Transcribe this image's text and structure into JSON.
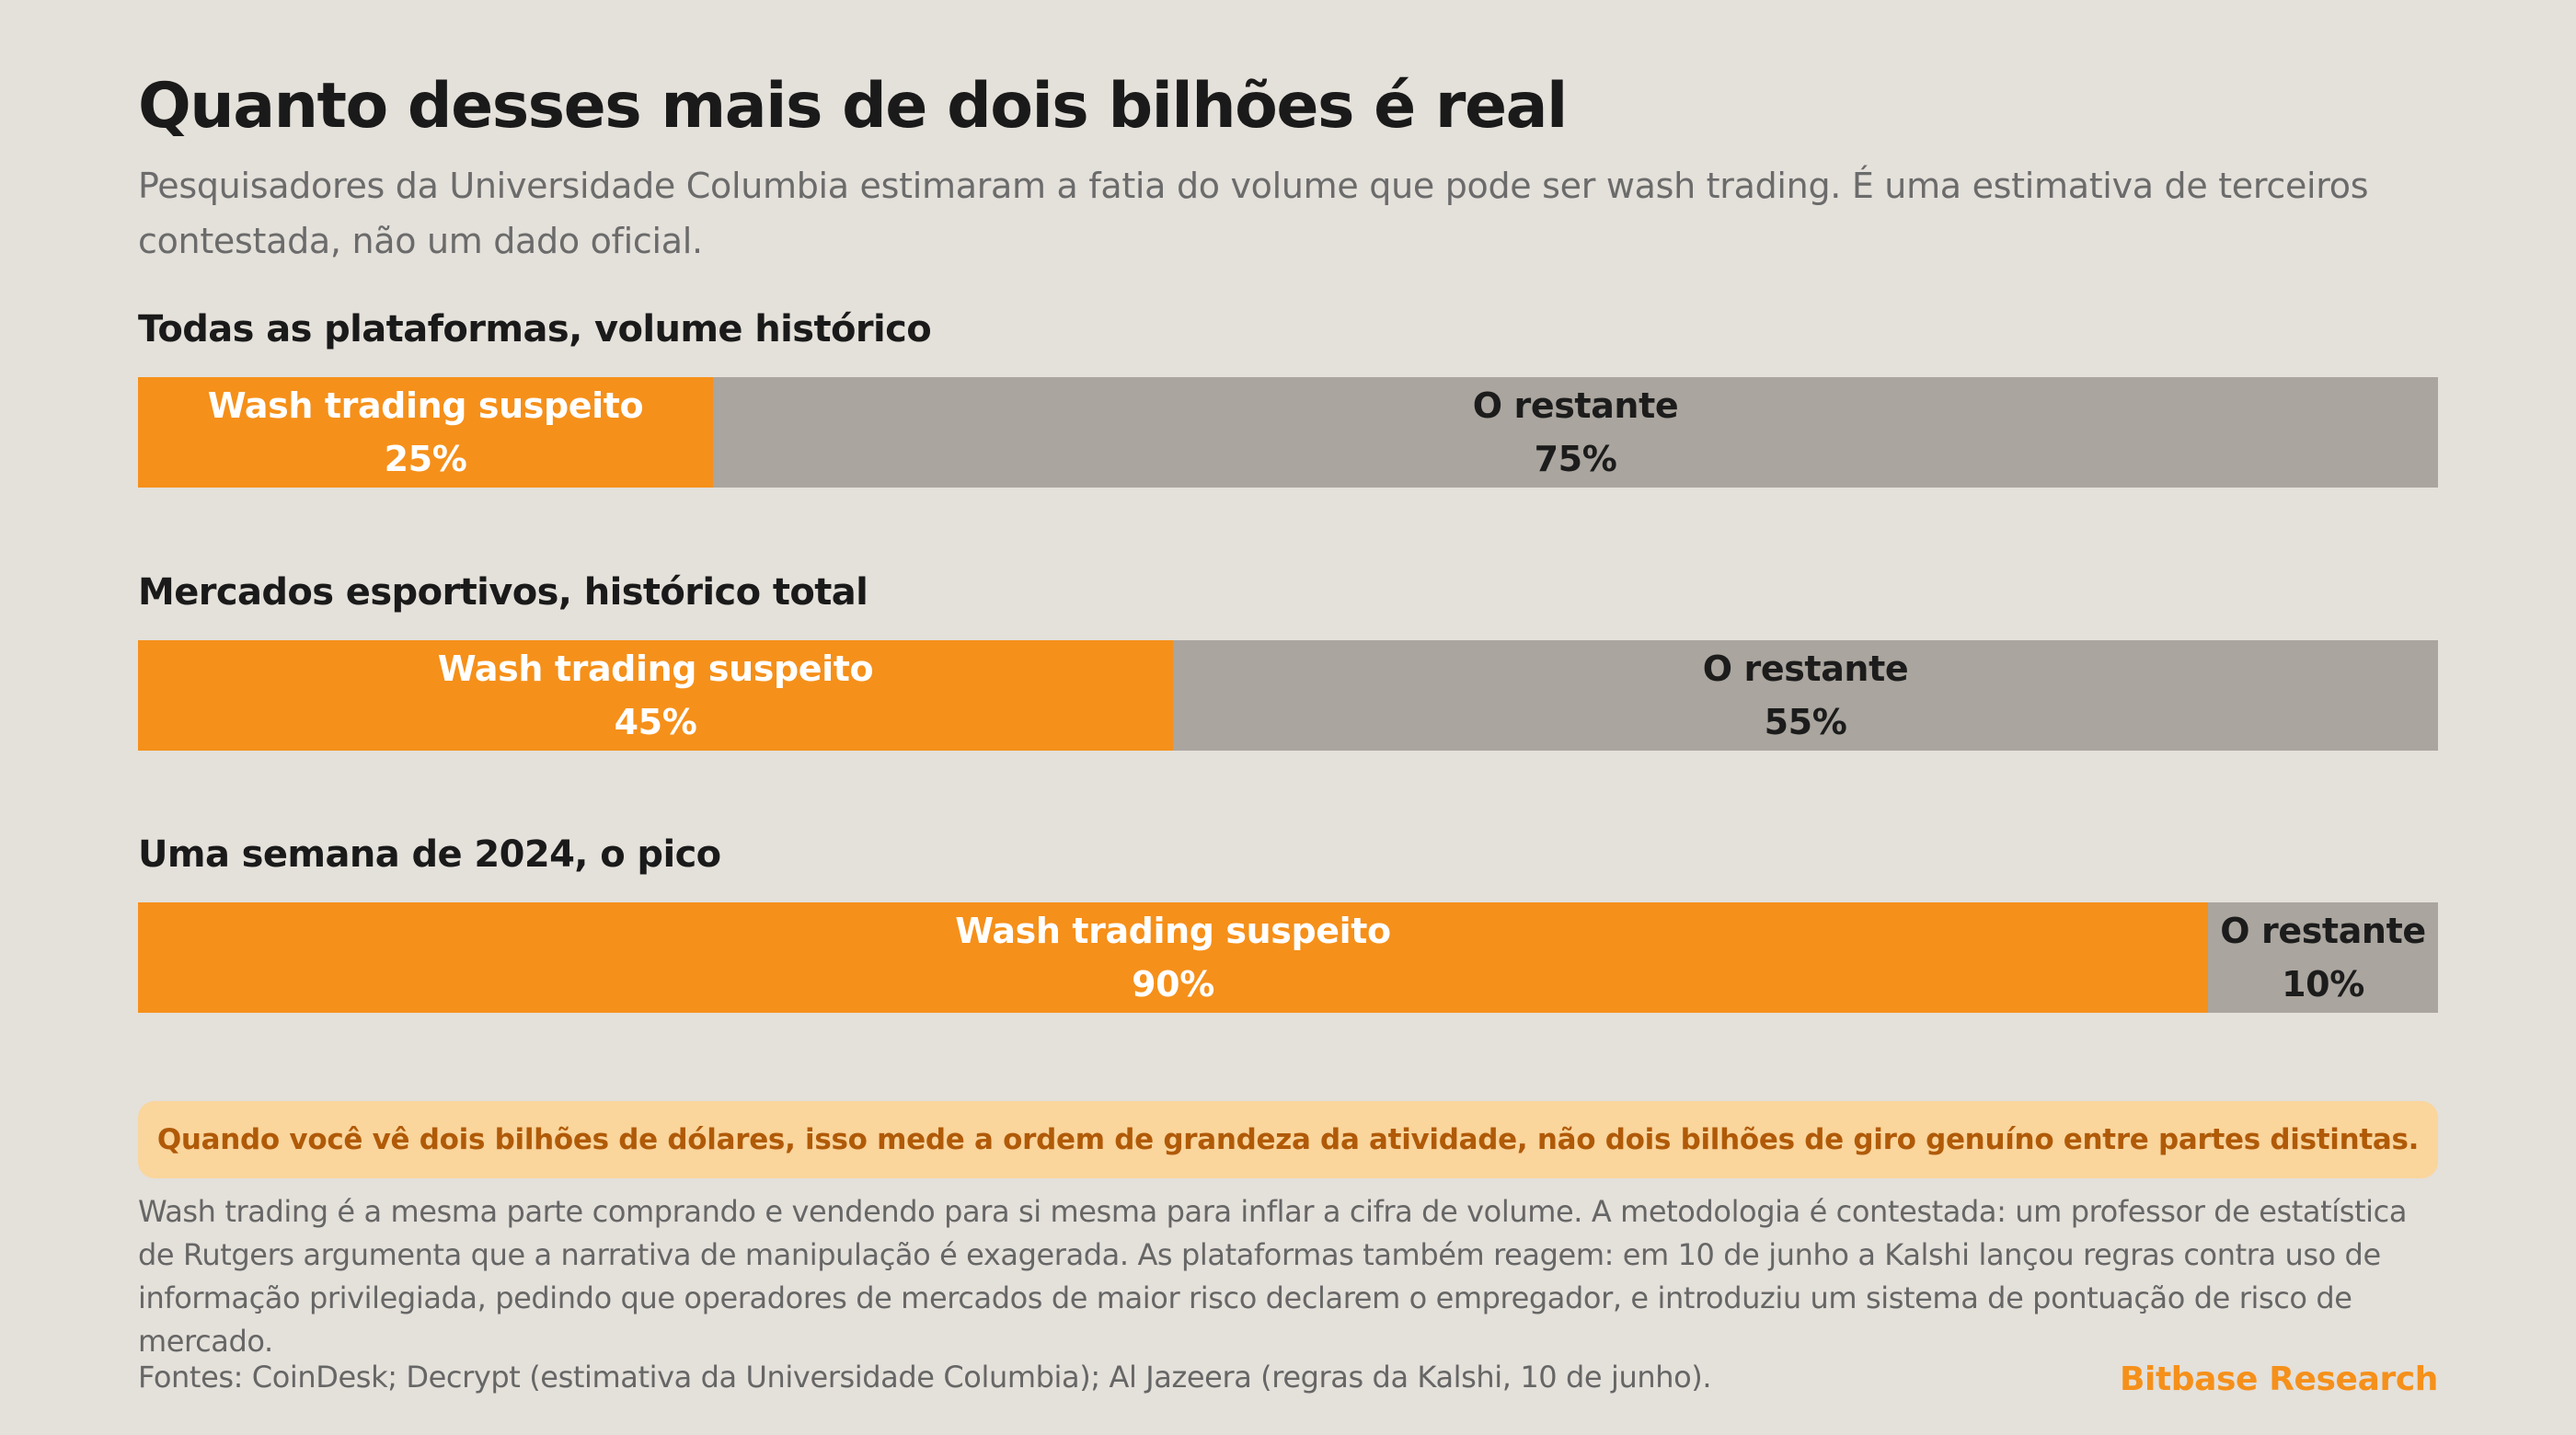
{
  "title": "Quanto desses mais de dois bilhões é real",
  "subtitle": "Pesquisadores da Universidade Columbia estimaram a fatia do volume que pode ser wash trading. É uma estimativa de terceiros contestada, não um dado oficial.",
  "colors": {
    "wash": "#f5901a",
    "rest": "#aaa59e",
    "background": "#e4e0da",
    "callout_bg": "#fad59c",
    "callout_text": "#b05a08",
    "brand": "#f5901a"
  },
  "chart_data": [
    {
      "type": "bar",
      "orientation": "horizontal-stacked-100",
      "title": "Todas as plataformas, volume histórico",
      "categories": [
        "Wash trading suspeito",
        "O restante"
      ],
      "values": [
        25,
        75
      ],
      "value_labels": [
        "25%",
        "75%"
      ]
    },
    {
      "type": "bar",
      "orientation": "horizontal-stacked-100",
      "title": "Mercados esportivos, histórico total",
      "categories": [
        "Wash trading suspeito",
        "O restante"
      ],
      "values": [
        45,
        55
      ],
      "value_labels": [
        "45%",
        "55%"
      ]
    },
    {
      "type": "bar",
      "orientation": "horizontal-stacked-100",
      "title": "Uma semana de 2024, o pico",
      "categories": [
        "Wash trading suspeito",
        "O restante"
      ],
      "values": [
        90,
        10
      ],
      "value_labels": [
        "90%",
        "10%"
      ]
    }
  ],
  "callout": "Quando você vê dois bilhões de dólares, isso mede a ordem de grandeza da atividade, não dois bilhões de giro genuíno entre partes distintas.",
  "body": "Wash trading é a mesma parte comprando e vendendo para si mesma para inflar a cifra de volume. A metodologia é contestada: um professor de estatística de Rutgers argumenta que a narrativa de manipulação é exagerada. As plataformas também reagem: em 10 de junho a Kalshi lançou regras contra uso de informação privilegiada, pedindo que operadores de mercados de maior risco declarem o empregador, e introduziu um sistema de pontuação de risco de mercado.",
  "sources": "Fontes: CoinDesk; Decrypt (estimativa da Universidade Columbia); Al Jazeera (regras da Kalshi, 10 de junho).",
  "brand": "Bitbase Research"
}
